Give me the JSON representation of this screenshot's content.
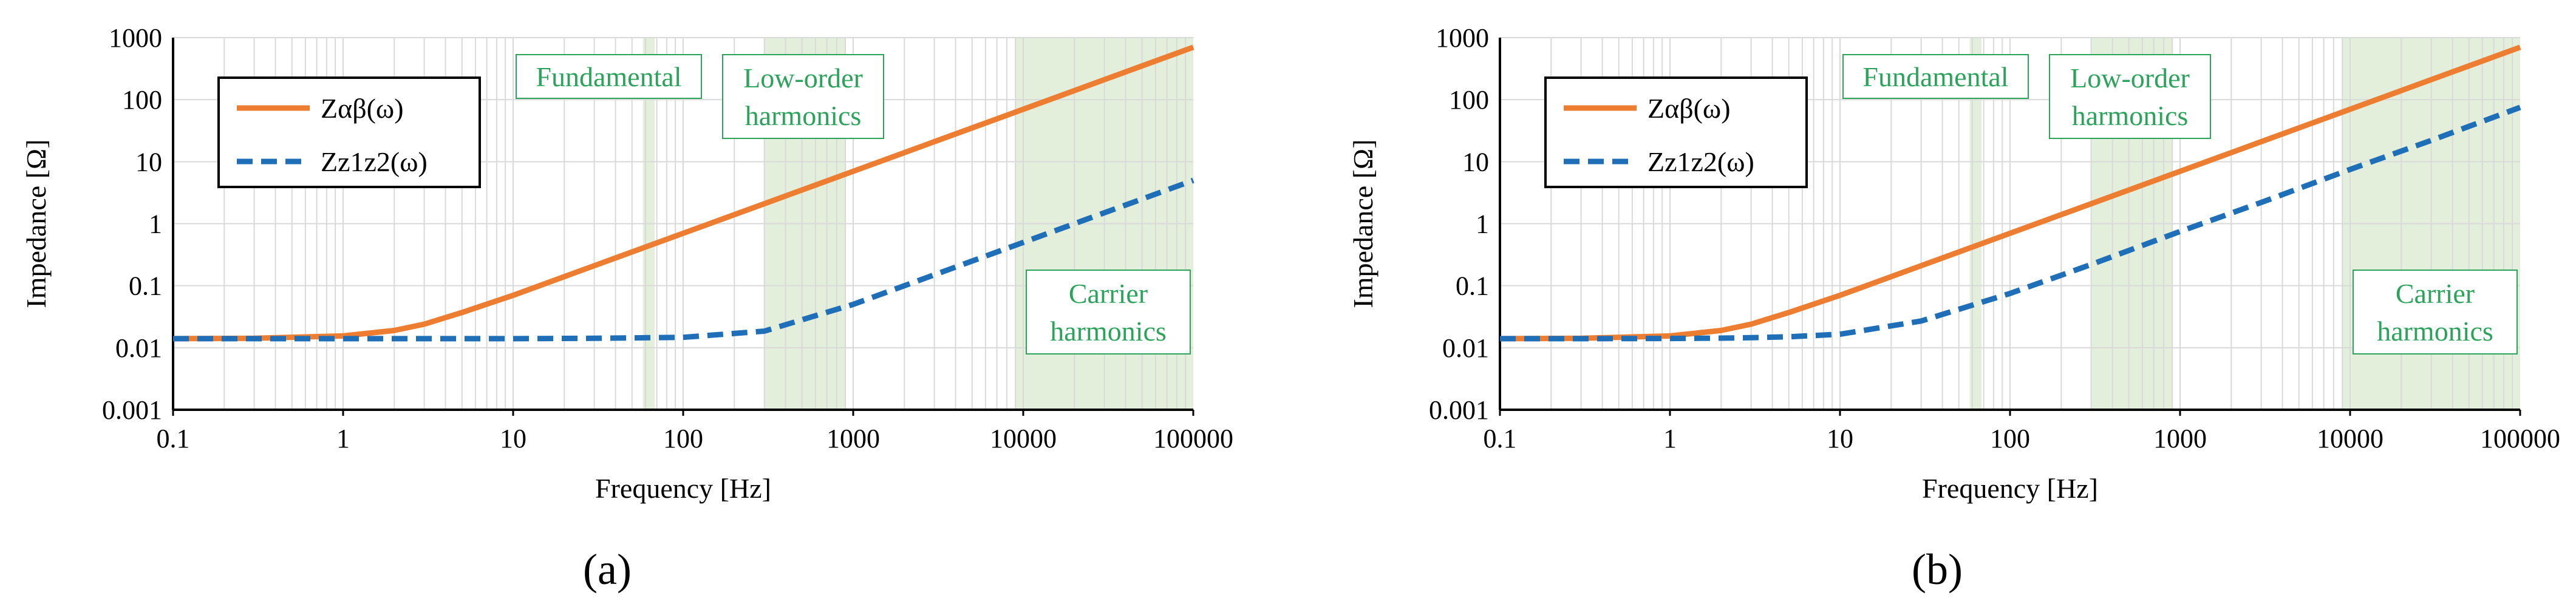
{
  "colors": {
    "z_ab": "#ED7D31",
    "z_z1z2": "#1F6EB8",
    "region_fill": "#e3efdb",
    "region_text": "#2ca35a",
    "grid": "#d9d9d9"
  },
  "chart_data": [
    {
      "type": "line",
      "panel_label": "(a)",
      "xlabel": "Frequency [Hz]",
      "ylabel": "Impedance [Ω]",
      "xscale": "log",
      "yscale": "log",
      "xlim": [
        0.1,
        100000
      ],
      "ylim": [
        0.001,
        1000
      ],
      "xticks": [
        "0.1",
        "1",
        "10",
        "100",
        "1000",
        "10000",
        "100000"
      ],
      "yticks": [
        "0.001",
        "0.01",
        "0.1",
        "1",
        "10",
        "100",
        "1000"
      ],
      "grid": true,
      "legend_position": "top-left",
      "x": [
        0.1,
        0.3,
        1,
        2,
        3,
        5,
        10,
        30,
        100,
        300,
        1000,
        3000,
        10000,
        30000,
        100000
      ],
      "series": [
        {
          "name": "Zαβ(ω)",
          "style": "solid",
          "values": [
            0.014,
            0.0142,
            0.0155,
            0.019,
            0.024,
            0.037,
            0.07,
            0.21,
            0.7,
            2.1,
            7.0,
            21,
            70,
            210,
            700
          ]
        },
        {
          "name": "Zz1z2(ω)",
          "style": "dashed",
          "values": [
            0.014,
            0.014,
            0.014,
            0.014,
            0.014,
            0.014,
            0.014,
            0.0142,
            0.0147,
            0.0185,
            0.05,
            0.15,
            0.5,
            1.5,
            5.0
          ]
        }
      ],
      "regions": [
        {
          "label": "Fundamental",
          "from": 58,
          "to": 68
        },
        {
          "label": "Low-order harmonics",
          "lines": [
            "Low-order",
            "harmonics"
          ],
          "from": 300,
          "to": 900
        },
        {
          "label": "Carrier harmonics",
          "lines": [
            "Carrier",
            "harmonics"
          ],
          "from": 9000,
          "to": 100000
        }
      ]
    },
    {
      "type": "line",
      "panel_label": "(b)",
      "xlabel": "Frequency [Hz]",
      "ylabel": "Impedance [Ω]",
      "xscale": "log",
      "yscale": "log",
      "xlim": [
        0.1,
        100000
      ],
      "ylim": [
        0.001,
        1000
      ],
      "xticks": [
        "0.1",
        "1",
        "10",
        "100",
        "1000",
        "10000",
        "100000"
      ],
      "yticks": [
        "0.001",
        "0.01",
        "0.1",
        "1",
        "10",
        "100",
        "1000"
      ],
      "grid": true,
      "legend_position": "top-left",
      "x": [
        0.1,
        0.3,
        1,
        2,
        3,
        5,
        10,
        30,
        100,
        300,
        1000,
        3000,
        10000,
        30000,
        100000
      ],
      "series": [
        {
          "name": "Zαβ(ω)",
          "style": "solid",
          "values": [
            0.014,
            0.0142,
            0.0155,
            0.019,
            0.024,
            0.037,
            0.07,
            0.21,
            0.7,
            2.1,
            7.0,
            21,
            70,
            210,
            700
          ]
        },
        {
          "name": "Zz1z2(ω)",
          "style": "dashed",
          "values": [
            0.014,
            0.014,
            0.0141,
            0.0143,
            0.0145,
            0.015,
            0.0165,
            0.027,
            0.075,
            0.22,
            0.75,
            2.2,
            7.5,
            22,
            75
          ]
        }
      ],
      "regions": [
        {
          "label": "Fundamental",
          "from": 58,
          "to": 68
        },
        {
          "label": "Low-order harmonics",
          "lines": [
            "Low-order",
            "harmonics"
          ],
          "from": 300,
          "to": 900
        },
        {
          "label": "Carrier harmonics",
          "lines": [
            "Carrier",
            "harmonics"
          ],
          "from": 9000,
          "to": 100000
        }
      ]
    }
  ]
}
